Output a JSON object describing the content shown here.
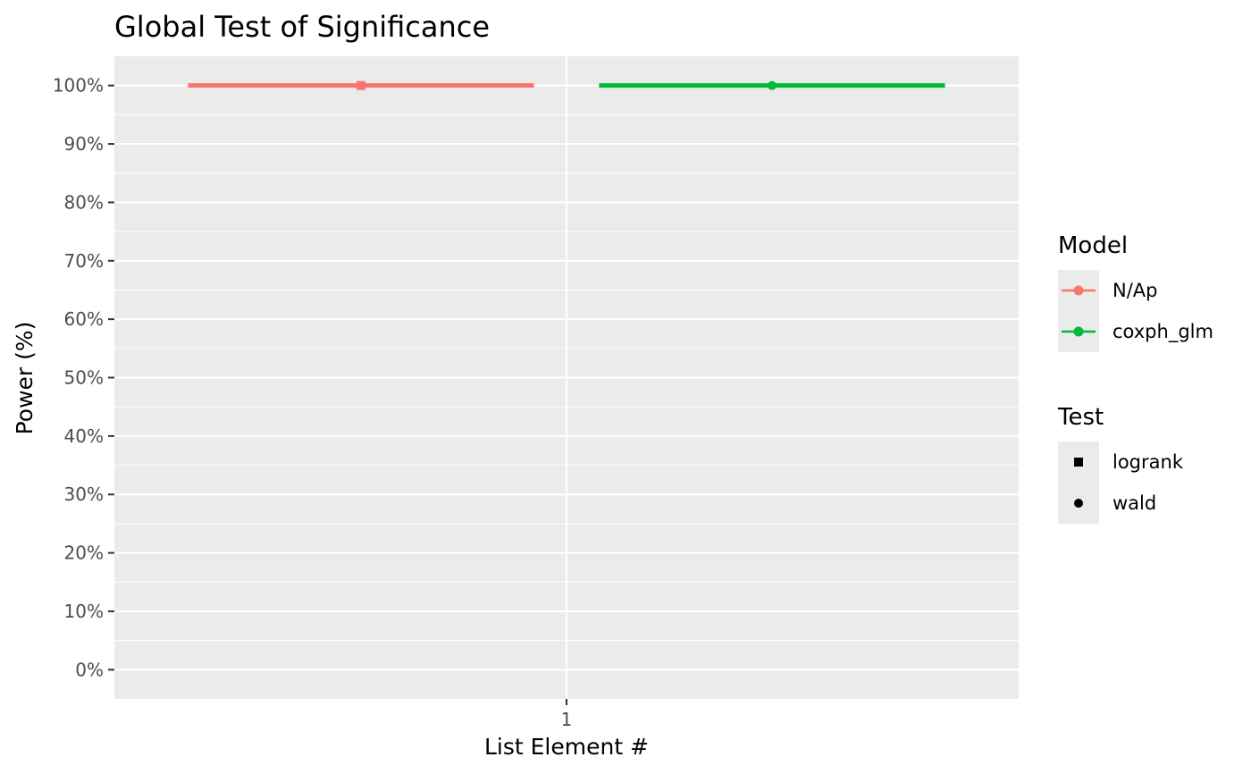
{
  "chart_data": {
    "type": "scatter",
    "title": "Global Test of Significance",
    "xlabel": "List Element #",
    "ylabel": "Power (%)",
    "x_categories": [
      "1"
    ],
    "ylim": [
      -0.05,
      1.05
    ],
    "y_ticks": [
      {
        "value": 0.0,
        "label": "0%"
      },
      {
        "value": 0.1,
        "label": "10%"
      },
      {
        "value": 0.2,
        "label": "20%"
      },
      {
        "value": 0.3,
        "label": "30%"
      },
      {
        "value": 0.4,
        "label": "40%"
      },
      {
        "value": 0.5,
        "label": "50%"
      },
      {
        "value": 0.6,
        "label": "60%"
      },
      {
        "value": 0.7,
        "label": "70%"
      },
      {
        "value": 0.8,
        "label": "80%"
      },
      {
        "value": 0.9,
        "label": "90%"
      },
      {
        "value": 1.0,
        "label": "100%"
      }
    ],
    "grid": true,
    "legend_position": "right",
    "series": [
      {
        "model": "N/Ap",
        "test": "logrank",
        "x": "1",
        "y": 1.0,
        "ci": [
          1.0,
          1.0
        ],
        "color": "#f8766d",
        "shape": "square"
      },
      {
        "model": "coxph_glm",
        "test": "wald",
        "x": "1",
        "y": 1.0,
        "ci": [
          1.0,
          1.0
        ],
        "color": "#00ba38",
        "shape": "circle"
      }
    ],
    "legend": {
      "model": {
        "title": "Model",
        "entries": [
          {
            "label": "N/Ap",
            "color": "#f8766d"
          },
          {
            "label": "coxph_glm",
            "color": "#00ba38"
          }
        ]
      },
      "test": {
        "title": "Test",
        "entries": [
          {
            "label": "logrank",
            "shape": "square"
          },
          {
            "label": "wald",
            "shape": "circle"
          }
        ]
      }
    }
  },
  "colors": {
    "panel_background": "#ebebeb",
    "gridline": "#ffffff",
    "tick_text": "#4d4d4d",
    "tick_mark": "#333333"
  }
}
